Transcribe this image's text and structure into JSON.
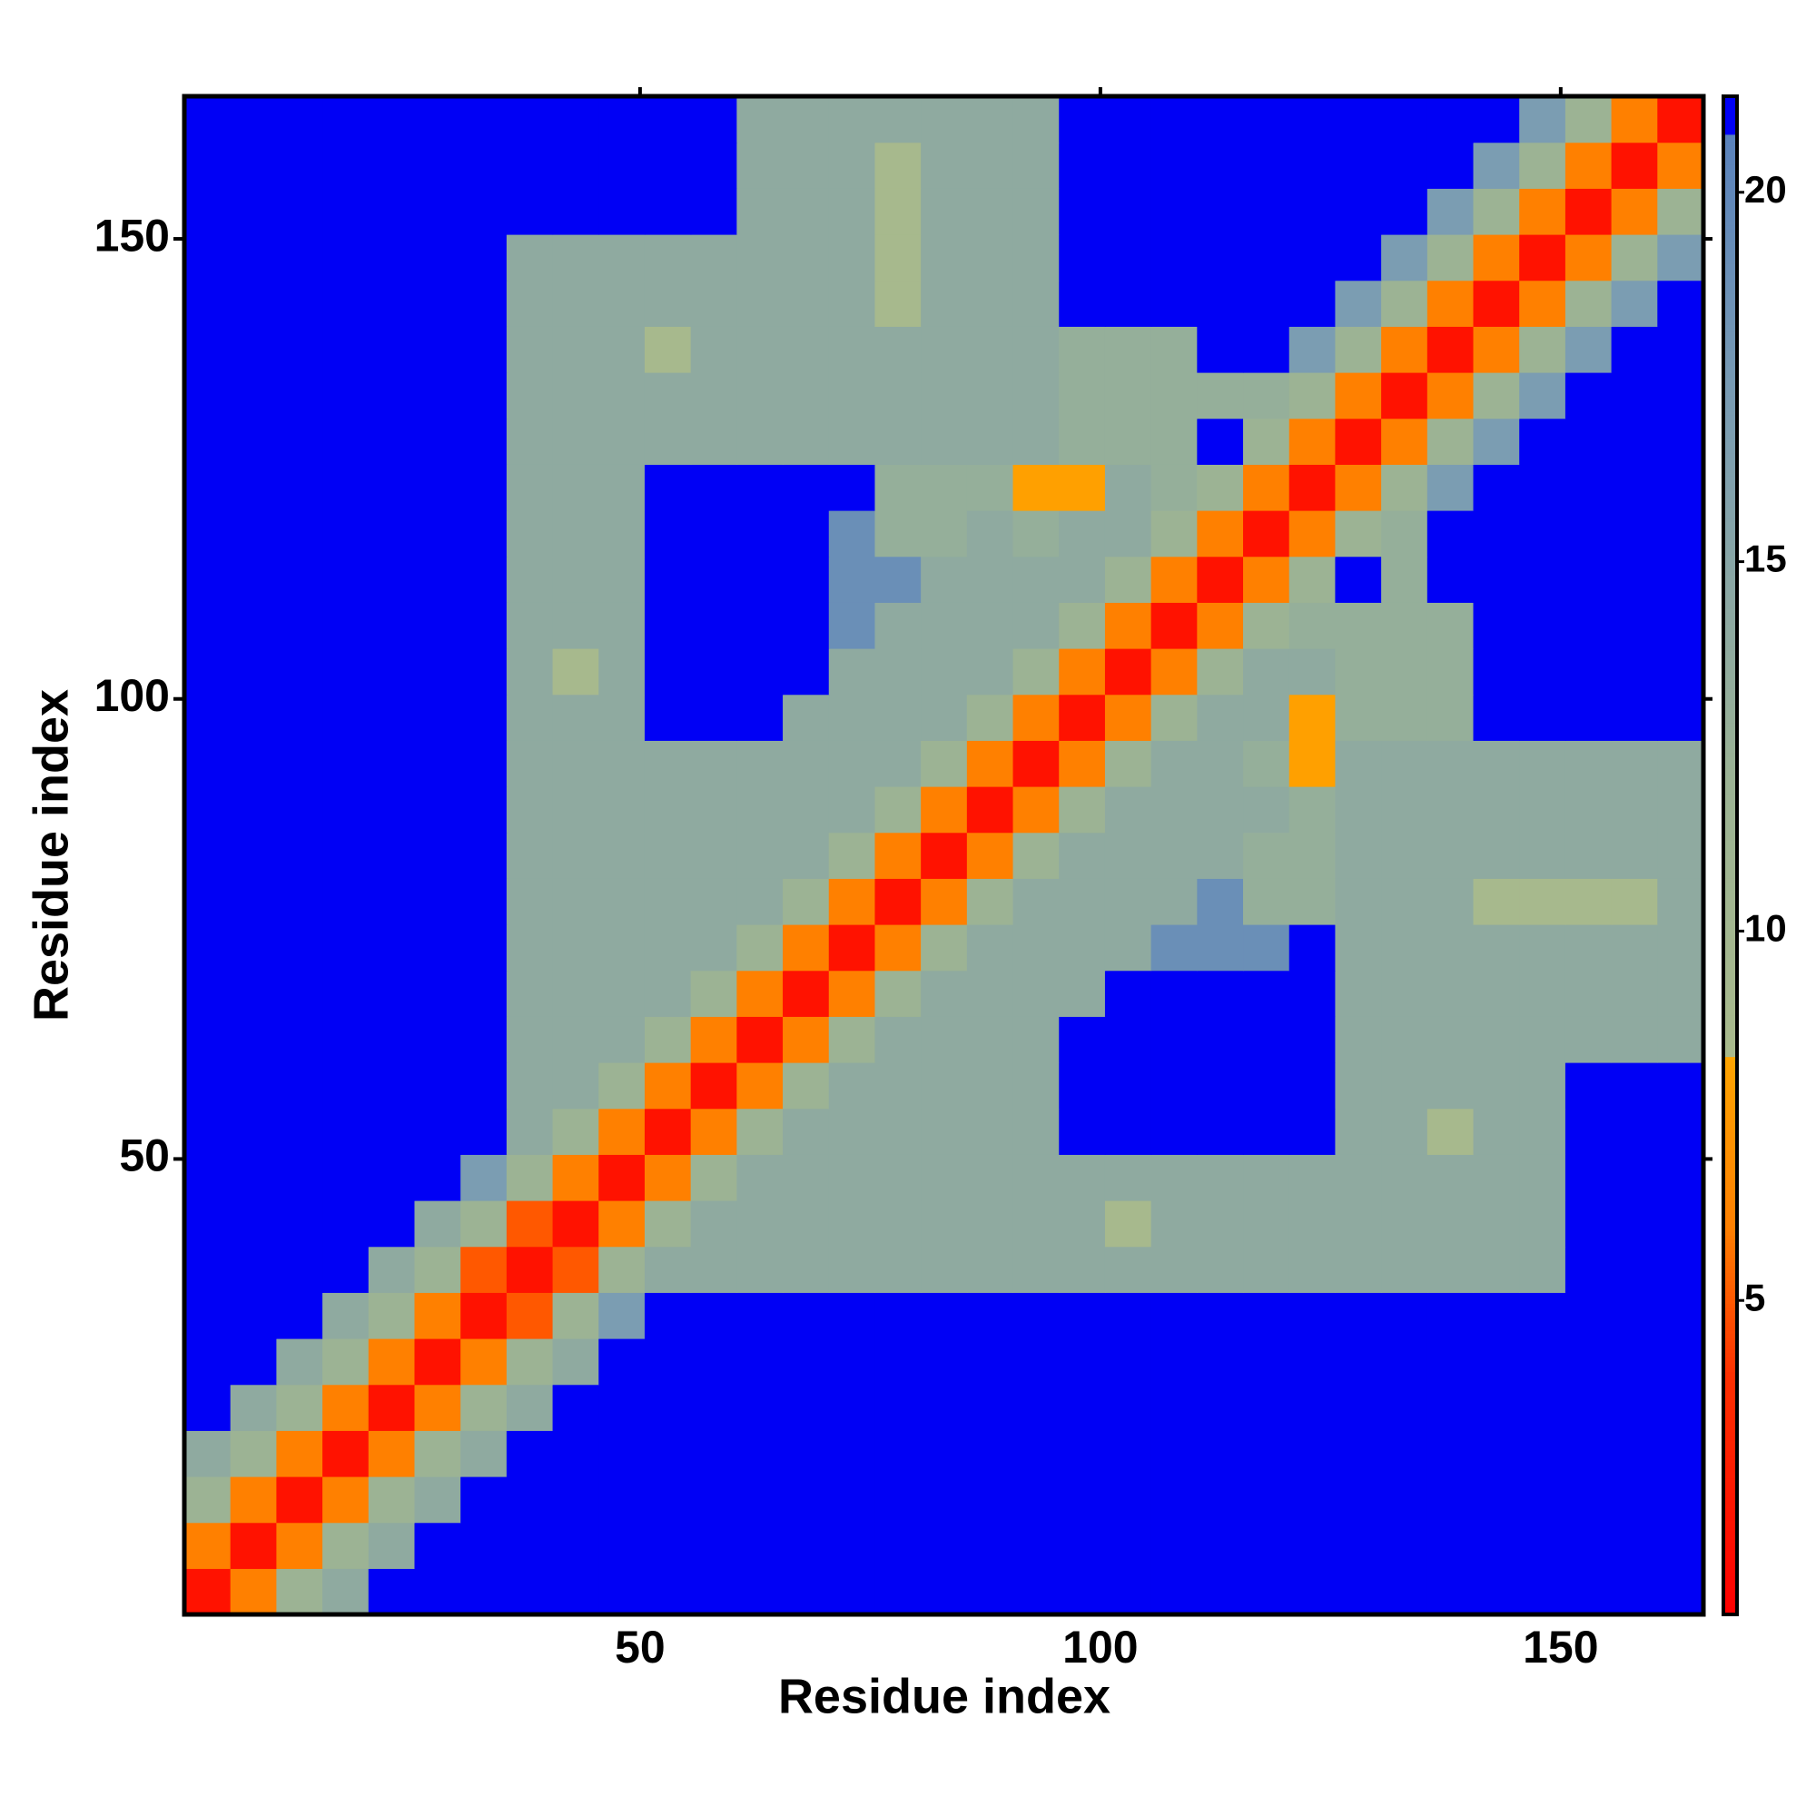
{
  "chart_data": {
    "type": "heatmap",
    "x_label": "Residue index",
    "y_label": "Residue index",
    "x": [
      3,
      8,
      13,
      18,
      23,
      28,
      33,
      38,
      43,
      48,
      53,
      58,
      63,
      68,
      73,
      78,
      83,
      88,
      93,
      98,
      103,
      108,
      113,
      118,
      123,
      128,
      133,
      138,
      143,
      148,
      153,
      158,
      163
    ],
    "y": [
      3,
      8,
      13,
      18,
      23,
      28,
      33,
      38,
      43,
      48,
      53,
      58,
      63,
      68,
      73,
      78,
      83,
      88,
      93,
      98,
      103,
      108,
      113,
      118,
      123,
      128,
      133,
      138,
      143,
      148,
      153,
      158,
      163
    ],
    "xlim": [
      0.5,
      165.5
    ],
    "ylim": [
      0.5,
      165.5
    ],
    "xticks": [
      50,
      100,
      150
    ],
    "yticks": [
      50,
      100,
      150
    ],
    "zlim": [
      0.75,
      21.3
    ],
    "zticks": [
      5,
      10,
      15,
      20
    ],
    "colorscale": [
      [
        0.75,
        "#ff0000"
      ],
      [
        4,
        "#ff3000"
      ],
      [
        6,
        "#ff8000"
      ],
      [
        8.3,
        "#ffa500"
      ],
      [
        8.31,
        "#a9ba8c"
      ],
      [
        12,
        "#9cb394"
      ],
      [
        17,
        "#7b9db2"
      ],
      [
        20.8,
        "#5a82bc"
      ],
      [
        20.81,
        "#0000f5"
      ],
      [
        25,
        "#0000f5"
      ]
    ],
    "z": [
      [
        2,
        6,
        12,
        14,
        25,
        25,
        25,
        25,
        25,
        25,
        25,
        25,
        25,
        25,
        25,
        25,
        25,
        25,
        25,
        25,
        25,
        25,
        25,
        25,
        25,
        25,
        25,
        25,
        25,
        25,
        25,
        25,
        25
      ],
      [
        6,
        2,
        6,
        12,
        14,
        25,
        25,
        25,
        25,
        25,
        25,
        25,
        25,
        25,
        25,
        25,
        25,
        25,
        25,
        25,
        25,
        25,
        25,
        25,
        25,
        25,
        25,
        25,
        25,
        25,
        25,
        25,
        25
      ],
      [
        12,
        6,
        2,
        6,
        12,
        14,
        25,
        25,
        25,
        25,
        25,
        25,
        25,
        25,
        25,
        25,
        25,
        25,
        25,
        25,
        25,
        25,
        25,
        25,
        25,
        25,
        25,
        25,
        25,
        25,
        25,
        25,
        25
      ],
      [
        14,
        12,
        6,
        2,
        6,
        12,
        14,
        25,
        25,
        25,
        25,
        25,
        25,
        25,
        25,
        25,
        25,
        25,
        25,
        25,
        25,
        25,
        25,
        25,
        25,
        25,
        25,
        25,
        25,
        25,
        25,
        25,
        25
      ],
      [
        25,
        14,
        12,
        6,
        2,
        6,
        12,
        14,
        25,
        25,
        25,
        25,
        25,
        25,
        25,
        25,
        25,
        25,
        25,
        25,
        25,
        25,
        25,
        25,
        25,
        25,
        25,
        25,
        25,
        25,
        25,
        25,
        25
      ],
      [
        25,
        25,
        14,
        12,
        6,
        2,
        6,
        12,
        14,
        25,
        25,
        25,
        25,
        25,
        25,
        25,
        25,
        25,
        25,
        25,
        25,
        25,
        25,
        25,
        25,
        25,
        25,
        25,
        25,
        25,
        25,
        25,
        25
      ],
      [
        25,
        25,
        25,
        14,
        12,
        6,
        2,
        5,
        12,
        17,
        25,
        25,
        25,
        25,
        25,
        25,
        25,
        25,
        25,
        25,
        25,
        25,
        25,
        25,
        25,
        25,
        25,
        25,
        25,
        25,
        25,
        25,
        25
      ],
      [
        25,
        25,
        25,
        25,
        14,
        12,
        5,
        2,
        5,
        12,
        14,
        14,
        14,
        14,
        14,
        14,
        14,
        14,
        14,
        14,
        14,
        14,
        14,
        14,
        14,
        14,
        14,
        14,
        14,
        14,
        25,
        25,
        25
      ],
      [
        25,
        25,
        25,
        25,
        25,
        14,
        12,
        5,
        2,
        6,
        12,
        14,
        14,
        14,
        14,
        14,
        14,
        14,
        14,
        14,
        9,
        14,
        14,
        14,
        14,
        14,
        14,
        14,
        14,
        14,
        25,
        25,
        25
      ],
      [
        25,
        25,
        25,
        25,
        25,
        25,
        17,
        12,
        6,
        2,
        6,
        12,
        14,
        14,
        14,
        14,
        14,
        14,
        14,
        14,
        14,
        14,
        14,
        14,
        14,
        14,
        14,
        14,
        14,
        14,
        25,
        25,
        25
      ],
      [
        25,
        25,
        25,
        25,
        25,
        25,
        25,
        14,
        12,
        6,
        2,
        6,
        12,
        14,
        14,
        14,
        14,
        14,
        14,
        25,
        25,
        25,
        25,
        25,
        25,
        14,
        14,
        9,
        14,
        14,
        25,
        25,
        25
      ],
      [
        25,
        25,
        25,
        25,
        25,
        25,
        25,
        14,
        14,
        12,
        6,
        2,
        6,
        12,
        14,
        14,
        14,
        14,
        14,
        25,
        25,
        25,
        25,
        25,
        25,
        14,
        14,
        14,
        14,
        14,
        25,
        25,
        25
      ],
      [
        25,
        25,
        25,
        25,
        25,
        25,
        25,
        14,
        14,
        14,
        12,
        6,
        2,
        6,
        12,
        14,
        14,
        14,
        14,
        25,
        25,
        25,
        25,
        25,
        25,
        14,
        14,
        14,
        14,
        14,
        14,
        14,
        14
      ],
      [
        25,
        25,
        25,
        25,
        25,
        25,
        25,
        14,
        14,
        14,
        14,
        12,
        6,
        2,
        6,
        12,
        14,
        14,
        14,
        14,
        25,
        25,
        25,
        25,
        25,
        14,
        14,
        14,
        14,
        14,
        14,
        14,
        14
      ],
      [
        25,
        25,
        25,
        25,
        25,
        25,
        25,
        14,
        14,
        14,
        14,
        14,
        12,
        6,
        2,
        6,
        12,
        14,
        14,
        14,
        14,
        19,
        19,
        19,
        25,
        14,
        14,
        14,
        14,
        14,
        14,
        14,
        14
      ],
      [
        25,
        25,
        25,
        25,
        25,
        25,
        25,
        14,
        14,
        14,
        14,
        14,
        14,
        12,
        6,
        2,
        6,
        12,
        14,
        14,
        14,
        14,
        19,
        13,
        13,
        14,
        14,
        14,
        9,
        9,
        9,
        9,
        14
      ],
      [
        25,
        25,
        25,
        25,
        25,
        25,
        25,
        14,
        14,
        14,
        14,
        14,
        14,
        14,
        12,
        6,
        2,
        6,
        12,
        14,
        14,
        14,
        14,
        13,
        13,
        14,
        14,
        14,
        14,
        14,
        14,
        14,
        14
      ],
      [
        25,
        25,
        25,
        25,
        25,
        25,
        25,
        14,
        14,
        14,
        14,
        14,
        14,
        14,
        14,
        12,
        6,
        2,
        6,
        12,
        14,
        14,
        14,
        14,
        13,
        14,
        14,
        14,
        14,
        14,
        14,
        14,
        14
      ],
      [
        25,
        25,
        25,
        25,
        25,
        25,
        25,
        14,
        14,
        14,
        14,
        14,
        14,
        14,
        14,
        14,
        12,
        6,
        2,
        6,
        12,
        14,
        14,
        13,
        8,
        14,
        14,
        14,
        14,
        14,
        14,
        14,
        14
      ],
      [
        25,
        25,
        25,
        25,
        25,
        25,
        25,
        14,
        14,
        14,
        25,
        25,
        25,
        14,
        14,
        14,
        14,
        12,
        6,
        2,
        6,
        12,
        14,
        14,
        8,
        13,
        13,
        13,
        25,
        25,
        25,
        25,
        25
      ],
      [
        25,
        25,
        25,
        25,
        25,
        25,
        25,
        14,
        9,
        14,
        25,
        25,
        25,
        25,
        14,
        14,
        14,
        14,
        12,
        6,
        2,
        6,
        12,
        14,
        14,
        13,
        13,
        13,
        25,
        25,
        25,
        25,
        25
      ],
      [
        25,
        25,
        25,
        25,
        25,
        25,
        25,
        14,
        14,
        14,
        25,
        25,
        25,
        25,
        19,
        14,
        14,
        14,
        14,
        12,
        6,
        2,
        6,
        12,
        13,
        13,
        13,
        13,
        25,
        25,
        25,
        25,
        25
      ],
      [
        25,
        25,
        25,
        25,
        25,
        25,
        25,
        14,
        14,
        14,
        25,
        25,
        25,
        25,
        19,
        19,
        14,
        14,
        14,
        14,
        12,
        6,
        2,
        6,
        12,
        25,
        13,
        25,
        25,
        25,
        25,
        25,
        25
      ],
      [
        25,
        25,
        25,
        25,
        25,
        25,
        25,
        14,
        14,
        14,
        25,
        25,
        25,
        25,
        19,
        13,
        13,
        14,
        13,
        14,
        14,
        12,
        6,
        2,
        6,
        12,
        13,
        25,
        25,
        25,
        25,
        25,
        25
      ],
      [
        25,
        25,
        25,
        25,
        25,
        25,
        25,
        14,
        14,
        14,
        25,
        25,
        25,
        25,
        25,
        13,
        13,
        13,
        8,
        8,
        14,
        13,
        12,
        6,
        2,
        6,
        12,
        17,
        25,
        25,
        25,
        25,
        25
      ],
      [
        25,
        25,
        25,
        25,
        25,
        25,
        25,
        14,
        14,
        14,
        14,
        14,
        14,
        14,
        14,
        14,
        14,
        14,
        14,
        13,
        13,
        13,
        25,
        12,
        6,
        2,
        6,
        12,
        17,
        25,
        25,
        25,
        25
      ],
      [
        25,
        25,
        25,
        25,
        25,
        25,
        25,
        14,
        14,
        14,
        14,
        14,
        14,
        14,
        14,
        14,
        14,
        14,
        14,
        13,
        13,
        13,
        13,
        13,
        12,
        6,
        2,
        6,
        12,
        17,
        25,
        25,
        25
      ],
      [
        25,
        25,
        25,
        25,
        25,
        25,
        25,
        14,
        14,
        14,
        9,
        14,
        14,
        14,
        14,
        14,
        14,
        14,
        14,
        13,
        13,
        13,
        25,
        25,
        17,
        12,
        6,
        2,
        6,
        12,
        17,
        25,
        25
      ],
      [
        25,
        25,
        25,
        25,
        25,
        25,
        25,
        14,
        14,
        14,
        14,
        14,
        14,
        14,
        14,
        9,
        14,
        14,
        14,
        25,
        25,
        25,
        25,
        25,
        25,
        17,
        12,
        6,
        2,
        6,
        12,
        17,
        25
      ],
      [
        25,
        25,
        25,
        25,
        25,
        25,
        25,
        14,
        14,
        14,
        14,
        14,
        14,
        14,
        14,
        9,
        14,
        14,
        14,
        25,
        25,
        25,
        25,
        25,
        25,
        25,
        17,
        12,
        6,
        2,
        6,
        12,
        17
      ],
      [
        25,
        25,
        25,
        25,
        25,
        25,
        25,
        25,
        25,
        25,
        25,
        25,
        14,
        14,
        14,
        9,
        14,
        14,
        14,
        25,
        25,
        25,
        25,
        25,
        25,
        25,
        25,
        17,
        12,
        6,
        2,
        6,
        12
      ],
      [
        25,
        25,
        25,
        25,
        25,
        25,
        25,
        25,
        25,
        25,
        25,
        25,
        14,
        14,
        14,
        9,
        14,
        14,
        14,
        25,
        25,
        25,
        25,
        25,
        25,
        25,
        25,
        25,
        17,
        12,
        6,
        2,
        6
      ],
      [
        25,
        25,
        25,
        25,
        25,
        25,
        25,
        25,
        25,
        25,
        25,
        25,
        14,
        14,
        14,
        14,
        14,
        14,
        14,
        25,
        25,
        25,
        25,
        25,
        25,
        25,
        25,
        25,
        25,
        17,
        12,
        6,
        2
      ]
    ]
  }
}
